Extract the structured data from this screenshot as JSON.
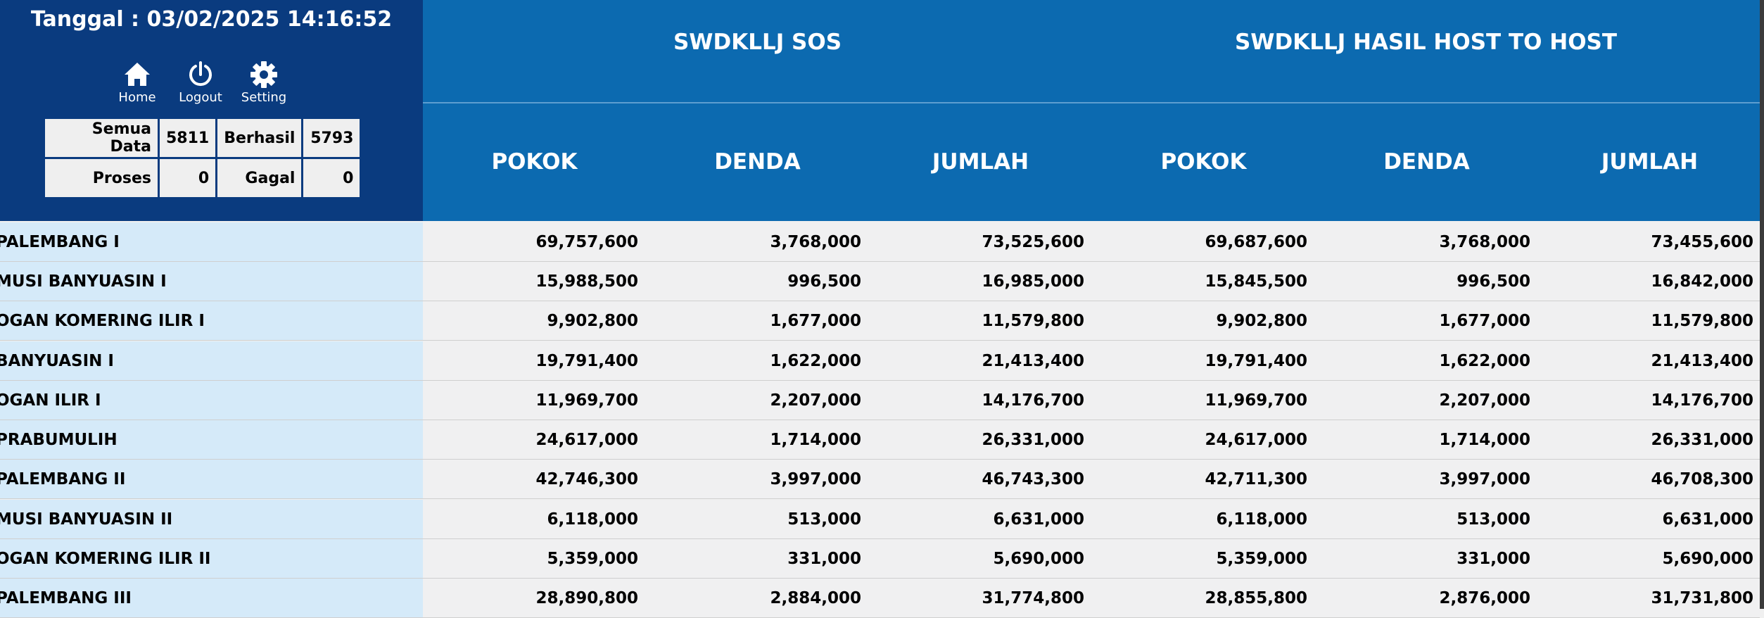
{
  "header": {
    "datetime": "Tanggal : 03/02/2025 14:16:52",
    "nav": [
      {
        "label": "Home",
        "icon": "home-icon"
      },
      {
        "label": "Logout",
        "icon": "power-icon"
      },
      {
        "label": "Setting",
        "icon": "gear-icon"
      }
    ],
    "stats": {
      "semua_label": "Semua Data",
      "semua_value": "5811",
      "berhasil_label": "Berhasil",
      "berhasil_value": "5793",
      "proses_label": "Proses",
      "proses_value": "0",
      "gagal_label": "Gagal",
      "gagal_value": "0"
    }
  },
  "groups": [
    "SWDKLLJ SOS",
    "SWDKLLJ HASIL HOST TO HOST"
  ],
  "columns": [
    "POKOK",
    "DENDA",
    "JUMLAH",
    "POKOK",
    "DENDA",
    "JUMLAH"
  ],
  "rows": [
    {
      "region": "PALEMBANG I",
      "values": [
        "69,757,600",
        "3,768,000",
        "73,525,600",
        "69,687,600",
        "3,768,000",
        "73,455,600"
      ]
    },
    {
      "region": "MUSI BANYUASIN I",
      "values": [
        "15,988,500",
        "996,500",
        "16,985,000",
        "15,845,500",
        "996,500",
        "16,842,000"
      ]
    },
    {
      "region": "OGAN KOMERING ILIR I",
      "values": [
        "9,902,800",
        "1,677,000",
        "11,579,800",
        "9,902,800",
        "1,677,000",
        "11,579,800"
      ]
    },
    {
      "region": "BANYUASIN I",
      "values": [
        "19,791,400",
        "1,622,000",
        "21,413,400",
        "19,791,400",
        "1,622,000",
        "21,413,400"
      ]
    },
    {
      "region": "OGAN ILIR I",
      "values": [
        "11,969,700",
        "2,207,000",
        "14,176,700",
        "11,969,700",
        "2,207,000",
        "14,176,700"
      ]
    },
    {
      "region": "PRABUMULIH",
      "values": [
        "24,617,000",
        "1,714,000",
        "26,331,000",
        "24,617,000",
        "1,714,000",
        "26,331,000"
      ]
    },
    {
      "region": "PALEMBANG II",
      "values": [
        "42,746,300",
        "3,997,000",
        "46,743,300",
        "42,711,300",
        "3,997,000",
        "46,708,300"
      ]
    },
    {
      "region": "MUSI BANYUASIN II",
      "values": [
        "6,118,000",
        "513,000",
        "6,631,000",
        "6,118,000",
        "513,000",
        "6,631,000"
      ]
    },
    {
      "region": "OGAN KOMERING ILIR II",
      "values": [
        "5,359,000",
        "331,000",
        "5,690,000",
        "5,359,000",
        "331,000",
        "5,690,000"
      ]
    },
    {
      "region": "PALEMBANG III",
      "values": [
        "28,890,800",
        "2,884,000",
        "31,774,800",
        "28,855,800",
        "2,876,000",
        "31,731,800"
      ]
    }
  ]
}
